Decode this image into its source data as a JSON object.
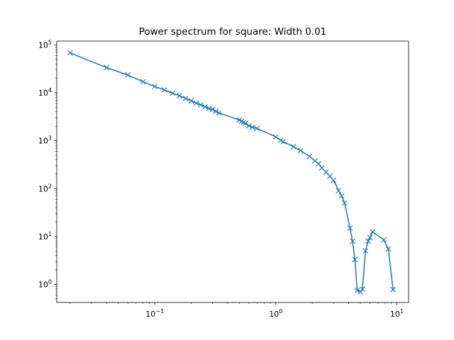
{
  "chart_data": {
    "type": "line",
    "title": "Power spectrum for square: Width 0.01",
    "xlabel": "",
    "ylabel": "",
    "xscale": "log",
    "yscale": "log",
    "xlim": [
      0.0155,
      12.5
    ],
    "ylim": [
      0.42,
      120000
    ],
    "grid": false,
    "legend": "none",
    "marker": "x",
    "x_ticks": [
      {
        "value": 0.1,
        "base": "10",
        "exp": "−1"
      },
      {
        "value": 1,
        "base": "10",
        "exp": "0"
      },
      {
        "value": 10,
        "base": "10",
        "exp": "1"
      }
    ],
    "y_ticks": [
      {
        "value": 1,
        "base": "10",
        "exp": "0"
      },
      {
        "value": 10,
        "base": "10",
        "exp": "1"
      },
      {
        "value": 100,
        "base": "10",
        "exp": "2"
      },
      {
        "value": 1000,
        "base": "10",
        "exp": "3"
      },
      {
        "value": 10000,
        "base": "10",
        "exp": "4"
      },
      {
        "value": 100000,
        "base": "10",
        "exp": "5"
      }
    ],
    "series": [
      {
        "color": "#1f77b4",
        "x": [
          0.02,
          0.04,
          0.06,
          0.08,
          0.1,
          0.12,
          0.14,
          0.16,
          0.18,
          0.2,
          0.22,
          0.24,
          0.26,
          0.28,
          0.3,
          0.32,
          0.34,
          0.5,
          0.52,
          0.54,
          0.56,
          0.6,
          0.64,
          0.7,
          1.0,
          1.1,
          1.15,
          1.4,
          1.6,
          1.9,
          2.1,
          2.25,
          2.4,
          2.6,
          2.8,
          3.0,
          3.3,
          3.5,
          3.7,
          4.1,
          4.3,
          4.5,
          4.7,
          5.0,
          5.2,
          5.5,
          5.8,
          6.0,
          6.3,
          7.8,
          8.5,
          9.3
        ],
        "y": [
          68000,
          33500,
          23500,
          17000,
          13500,
          11500,
          9800,
          8700,
          7600,
          6800,
          6100,
          5600,
          5100,
          4700,
          4500,
          4100,
          3800,
          2700,
          2550,
          2400,
          2300,
          2050,
          1900,
          1800,
          1200,
          1020,
          950,
          750,
          620,
          470,
          380,
          330,
          270,
          220,
          180,
          150,
          90,
          70,
          50,
          15,
          8,
          3.3,
          0.75,
          0.7,
          0.8,
          5,
          8,
          9.5,
          12.5,
          8.5,
          5.5,
          0.78
        ]
      }
    ]
  }
}
